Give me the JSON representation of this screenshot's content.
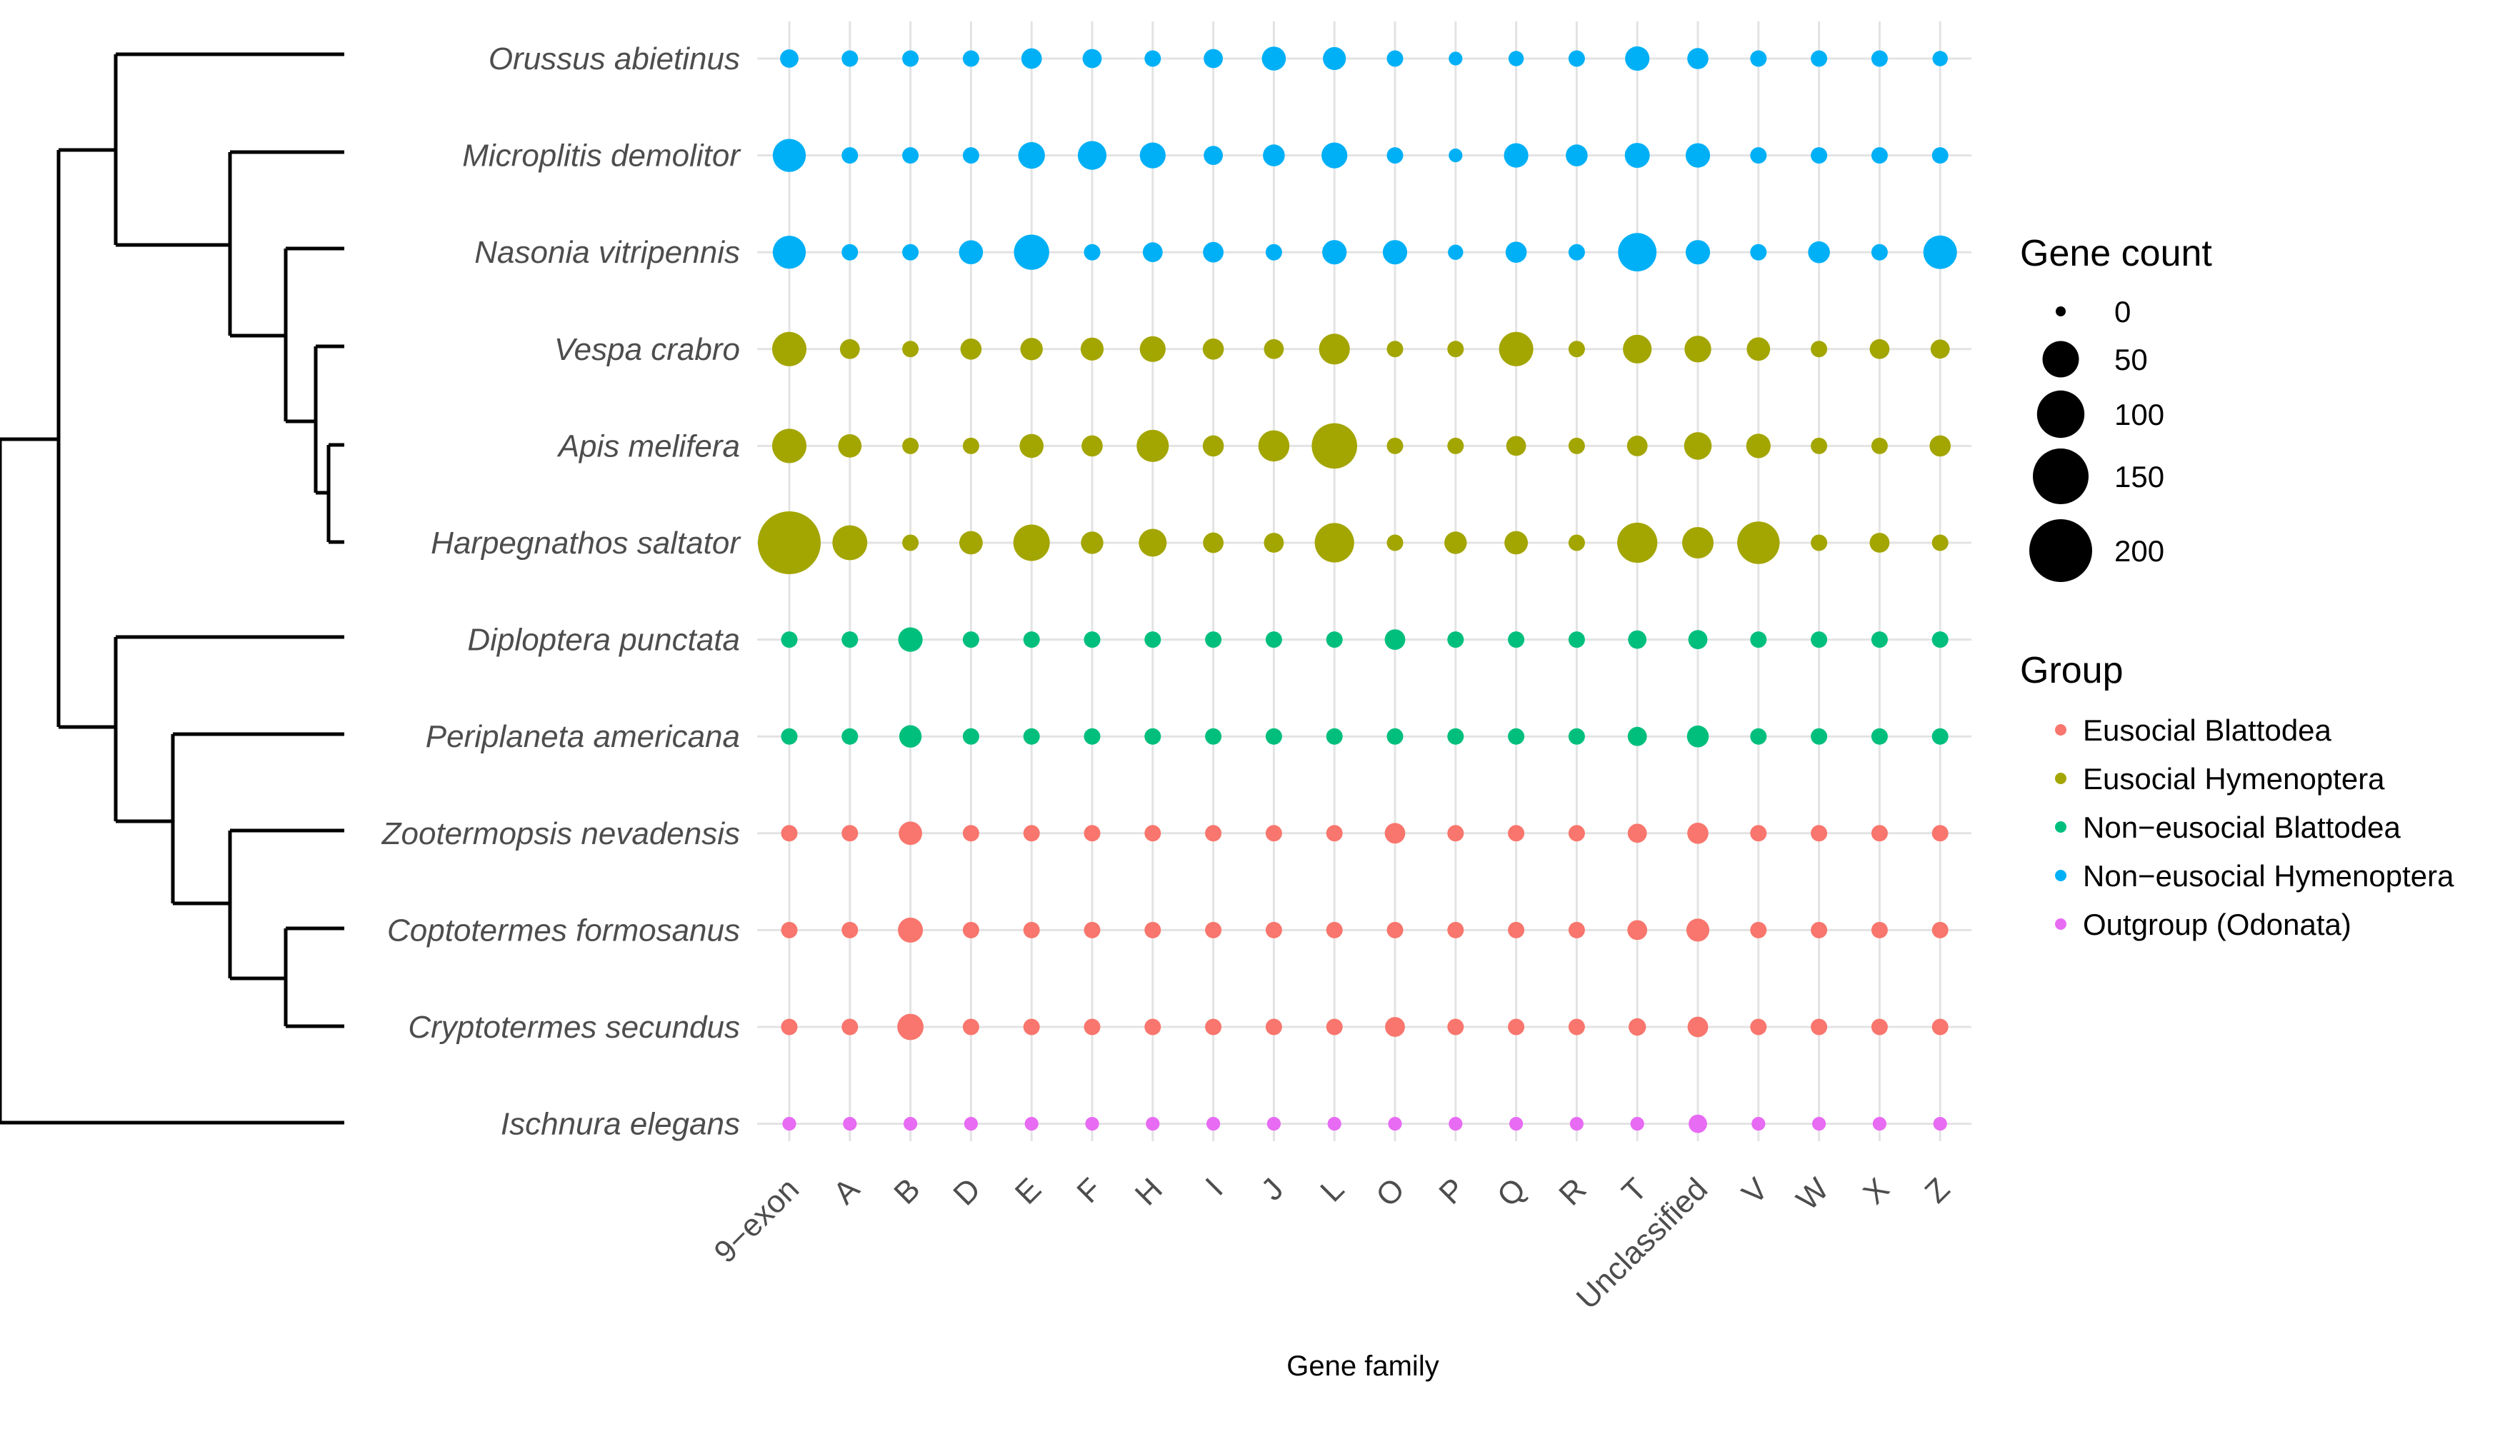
{
  "chart_data": {
    "type": "scatter",
    "xlabel": "Gene family",
    "ylabel": "",
    "categories": [
      "9−exon",
      "A",
      "B",
      "D",
      "E",
      "F",
      "H",
      "I",
      "J",
      "L",
      "O",
      "P",
      "Q",
      "R",
      "T",
      "Unclassified",
      "V",
      "W",
      "X",
      "Z"
    ],
    "species": [
      {
        "name": "Orussus abietinus",
        "group": "Non−eusocial Hymenoptera",
        "values": [
          5,
          3,
          3,
          3,
          8,
          6,
          3,
          6,
          14,
          12,
          3,
          1,
          2,
          3,
          15,
          9,
          3,
          3,
          3,
          2
        ]
      },
      {
        "name": "Microplitis demolitor",
        "group": "Non−eusocial Hymenoptera",
        "values": [
          38,
          3,
          3,
          3,
          20,
          25,
          18,
          6,
          10,
          18,
          3,
          1,
          15,
          10,
          16,
          15,
          3,
          3,
          3,
          3
        ]
      },
      {
        "name": "Nasonia vitripennis",
        "group": "Non−eusocial Hymenoptera",
        "values": [
          38,
          3,
          3,
          14,
          46,
          3,
          7,
          8,
          3,
          15,
          15,
          2,
          9,
          3,
          58,
          15,
          3,
          10,
          3,
          40
        ]
      },
      {
        "name": "Vespa crabro",
        "group": "Eusocial Hymenoptera",
        "values": [
          42,
          7,
          3,
          9,
          11,
          12,
          18,
          9,
          7,
          31,
          3,
          3,
          42,
          3,
          25,
          20,
          13,
          3,
          7,
          6
        ]
      },
      {
        "name": "Apis melifera",
        "group": "Eusocial Hymenoptera",
        "values": [
          42,
          13,
          3,
          3,
          14,
          9,
          35,
          9,
          32,
          90,
          3,
          3,
          7,
          3,
          8,
          22,
          15,
          3,
          3,
          9
        ]
      },
      {
        "name": "Harpegnathos saltator",
        "group": "Eusocial Hymenoptera",
        "values": [
          200,
          44,
          3,
          13,
          50,
          11,
          23,
          8,
          7,
          62,
          3,
          11,
          13,
          3,
          65,
          33,
          75,
          3,
          7,
          3
        ]
      },
      {
        "name": "Diploptera punctata",
        "group": "Non−eusocial Blattodea",
        "values": [
          3,
          3,
          15,
          3,
          3,
          3,
          3,
          3,
          3,
          3,
          8,
          3,
          3,
          3,
          5,
          6,
          3,
          3,
          3,
          3
        ]
      },
      {
        "name": "Periplaneta americana",
        "group": "Non−eusocial Blattodea",
        "values": [
          3,
          3,
          11,
          3,
          3,
          3,
          3,
          3,
          3,
          3,
          3,
          3,
          3,
          3,
          6,
          10,
          3,
          3,
          3,
          3
        ]
      },
      {
        "name": "Zootermopsis nevadensis",
        "group": "Eusocial Blattodea",
        "values": [
          3,
          3,
          13,
          3,
          3,
          3,
          3,
          3,
          3,
          3,
          8,
          3,
          3,
          3,
          6,
          9,
          3,
          3,
          3,
          3
        ]
      },
      {
        "name": "Coptotermes formosanus",
        "group": "Eusocial Blattodea",
        "values": [
          3,
          3,
          16,
          3,
          3,
          3,
          3,
          3,
          3,
          3,
          3,
          3,
          3,
          3,
          7,
          12,
          3,
          3,
          3,
          3
        ]
      },
      {
        "name": "Cryptotermes secundus",
        "group": "Eusocial Blattodea",
        "values": [
          3,
          3,
          19,
          3,
          3,
          3,
          3,
          3,
          3,
          3,
          7,
          3,
          3,
          3,
          4,
          8,
          3,
          3,
          3,
          3
        ]
      },
      {
        "name": "Ischnura elegans",
        "group": "Outgroup (Odonata)",
        "values": [
          1,
          1,
          1,
          1,
          1,
          1,
          1,
          1,
          1,
          1,
          1,
          1,
          1,
          1,
          1,
          5,
          1,
          1,
          1,
          1
        ]
      }
    ],
    "size_legend": {
      "title": "Gene count",
      "values": [
        0,
        50,
        100,
        150,
        200
      ]
    },
    "color_legend": {
      "title": "Group",
      "entries": [
        {
          "label": "Eusocial Blattodea",
          "color": "#F8766D"
        },
        {
          "label": "Eusocial Hymenoptera",
          "color": "#A3A500"
        },
        {
          "label": "Non−eusocial Blattodea",
          "color": "#00BF7D"
        },
        {
          "label": "Non−eusocial Hymenoptera",
          "color": "#00B0F6"
        },
        {
          "label": "Outgroup (Odonata)",
          "color": "#E76BF3"
        }
      ]
    },
    "grid": true,
    "legend_position": "right"
  }
}
